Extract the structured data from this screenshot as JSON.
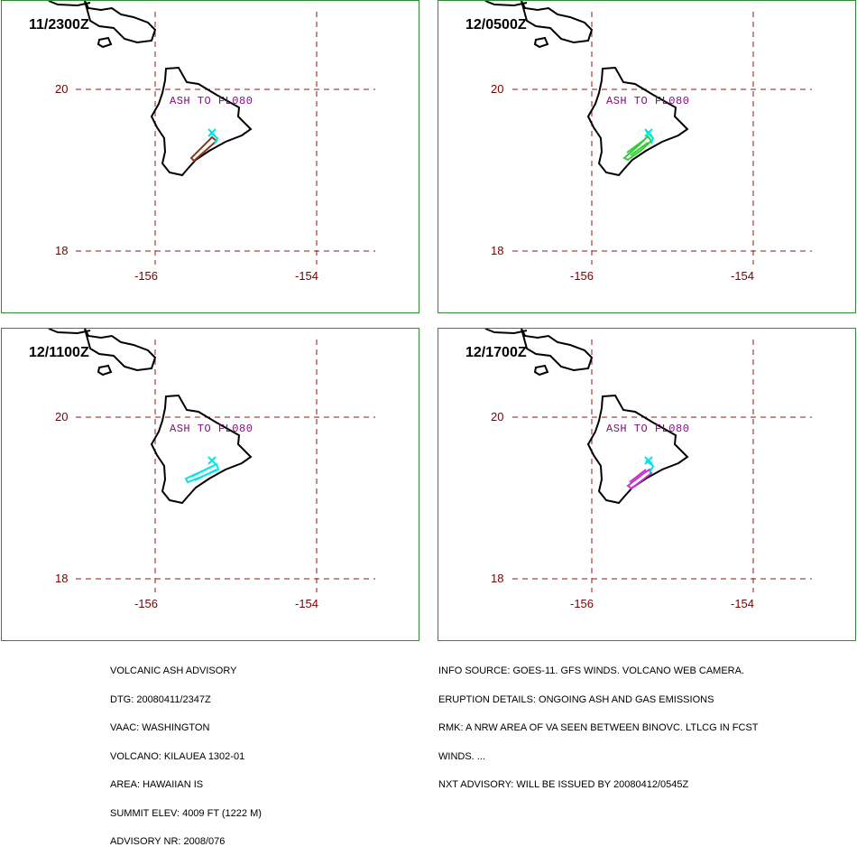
{
  "panels": [
    {
      "time": "11/2300Z",
      "ash": "ASH TO FL080",
      "plume_color": "#8b3a1e",
      "plume_color2": "#00e5e5"
    },
    {
      "time": "12/0500Z",
      "ash": "ASH TO FL080",
      "plume_color": "#33cc33",
      "plume_color2": "#00e5e5"
    },
    {
      "time": "12/1100Z",
      "ash": "ASH TO FL080",
      "plume_color": "#00e5e5",
      "plume_color2": "#00e5e5"
    },
    {
      "time": "12/1700Z",
      "ash": "ASH TO FL080",
      "plume_color": "#cc33cc",
      "plume_color2": "#00e5e5"
    }
  ],
  "grid": {
    "lat_labels": [
      "20",
      "18"
    ],
    "lon_labels": [
      "-156",
      "-154"
    ]
  },
  "advisory_left": [
    "VOLCANIC ASH ADVISORY",
    "DTG: 20080411/2347Z",
    "VAAC: WASHINGTON",
    "VOLCANO: KILAUEA 1302-01",
    "AREA: HAWAIIAN IS",
    "SUMMIT ELEV: 4009 FT (1222 M)",
    "ADVISORY NR: 2008/076"
  ],
  "advisory_right": [
    "INFO SOURCE: GOES-11. GFS WINDS. VOLCANO WEB CAMERA.",
    "ERUPTION DETAILS: ONGOING ASH AND GAS EMISSIONS",
    "RMK: A NRW AREA OF VA SEEN BETWEEN BINOVC. LTLCG IN FCST",
    "WINDS. ...",
    "NXT ADVISORY: WILL BE ISSUED BY 20080412/0545Z"
  ],
  "colors": {
    "border": "#2e8b2e",
    "grid": "#8b1a1a",
    "coast": "#000000",
    "ash_text": "#7a0f7a"
  }
}
